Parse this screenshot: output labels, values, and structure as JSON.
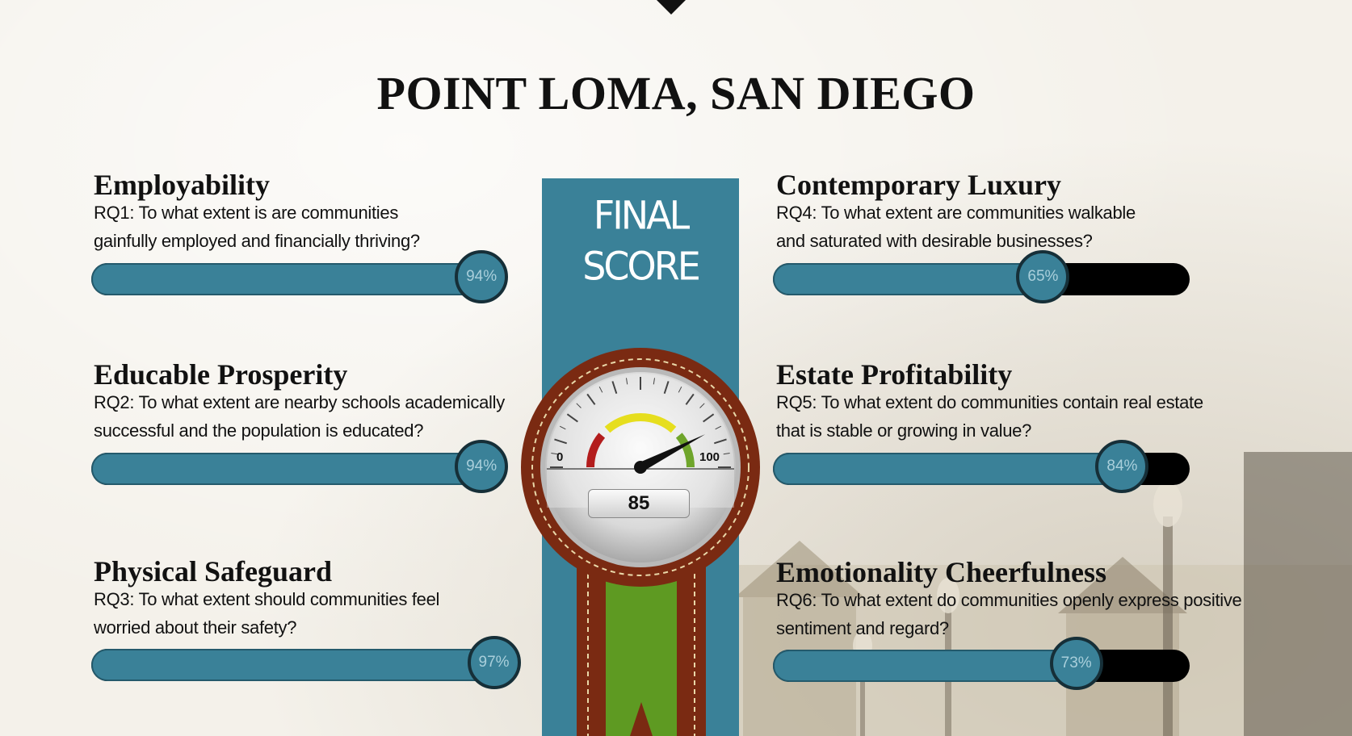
{
  "page": {
    "title": "POINT LOMA, SAN DIEGO"
  },
  "final": {
    "label_line1": "FINAL",
    "label_line2": "SCORE",
    "score": "85",
    "gauge_min": "0",
    "gauge_max": "100",
    "score_fraction": 0.85
  },
  "metrics": [
    {
      "title": "Employability",
      "question_line1": "RQ1: To what extent is are communities",
      "question_line2": "gainfully employed and financially thriving?",
      "percent_label": "94%",
      "percent": 0.94
    },
    {
      "title": "Educable Prosperity",
      "question_line1": "RQ2: To what extent are nearby schools academically",
      "question_line2": "successful and the population is educated?",
      "percent_label": "94%",
      "percent": 0.94
    },
    {
      "title": "Physical Safeguard",
      "question_line1": "RQ3: To what extent should communities feel",
      "question_line2": "worried about their safety?",
      "percent_label": "97%",
      "percent": 0.97
    },
    {
      "title": "Contemporary Luxury",
      "question_line1": "RQ4: To what extent are communities walkable",
      "question_line2": "and saturated with desirable businesses?",
      "percent_label": "65%",
      "percent": 0.65
    },
    {
      "title": "Estate Profitability",
      "question_line1": "RQ5: To what extent do communities contain real estate",
      "question_line2": "that is stable or growing in value?",
      "percent_label": "84%",
      "percent": 0.84
    },
    {
      "title": "Emotionality Cheerfulness",
      "question_line1": "RQ6: To what extent do communities openly express positive",
      "question_line2": "sentiment and regard?",
      "percent_label": "73%",
      "percent": 0.73
    }
  ],
  "colors": {
    "bar_fill": "#3a8198",
    "bar_track": "#000000",
    "column": "#3a8198",
    "ribbon_green": "#5e9a22",
    "ribbon_brown": "#7a2a12"
  }
}
